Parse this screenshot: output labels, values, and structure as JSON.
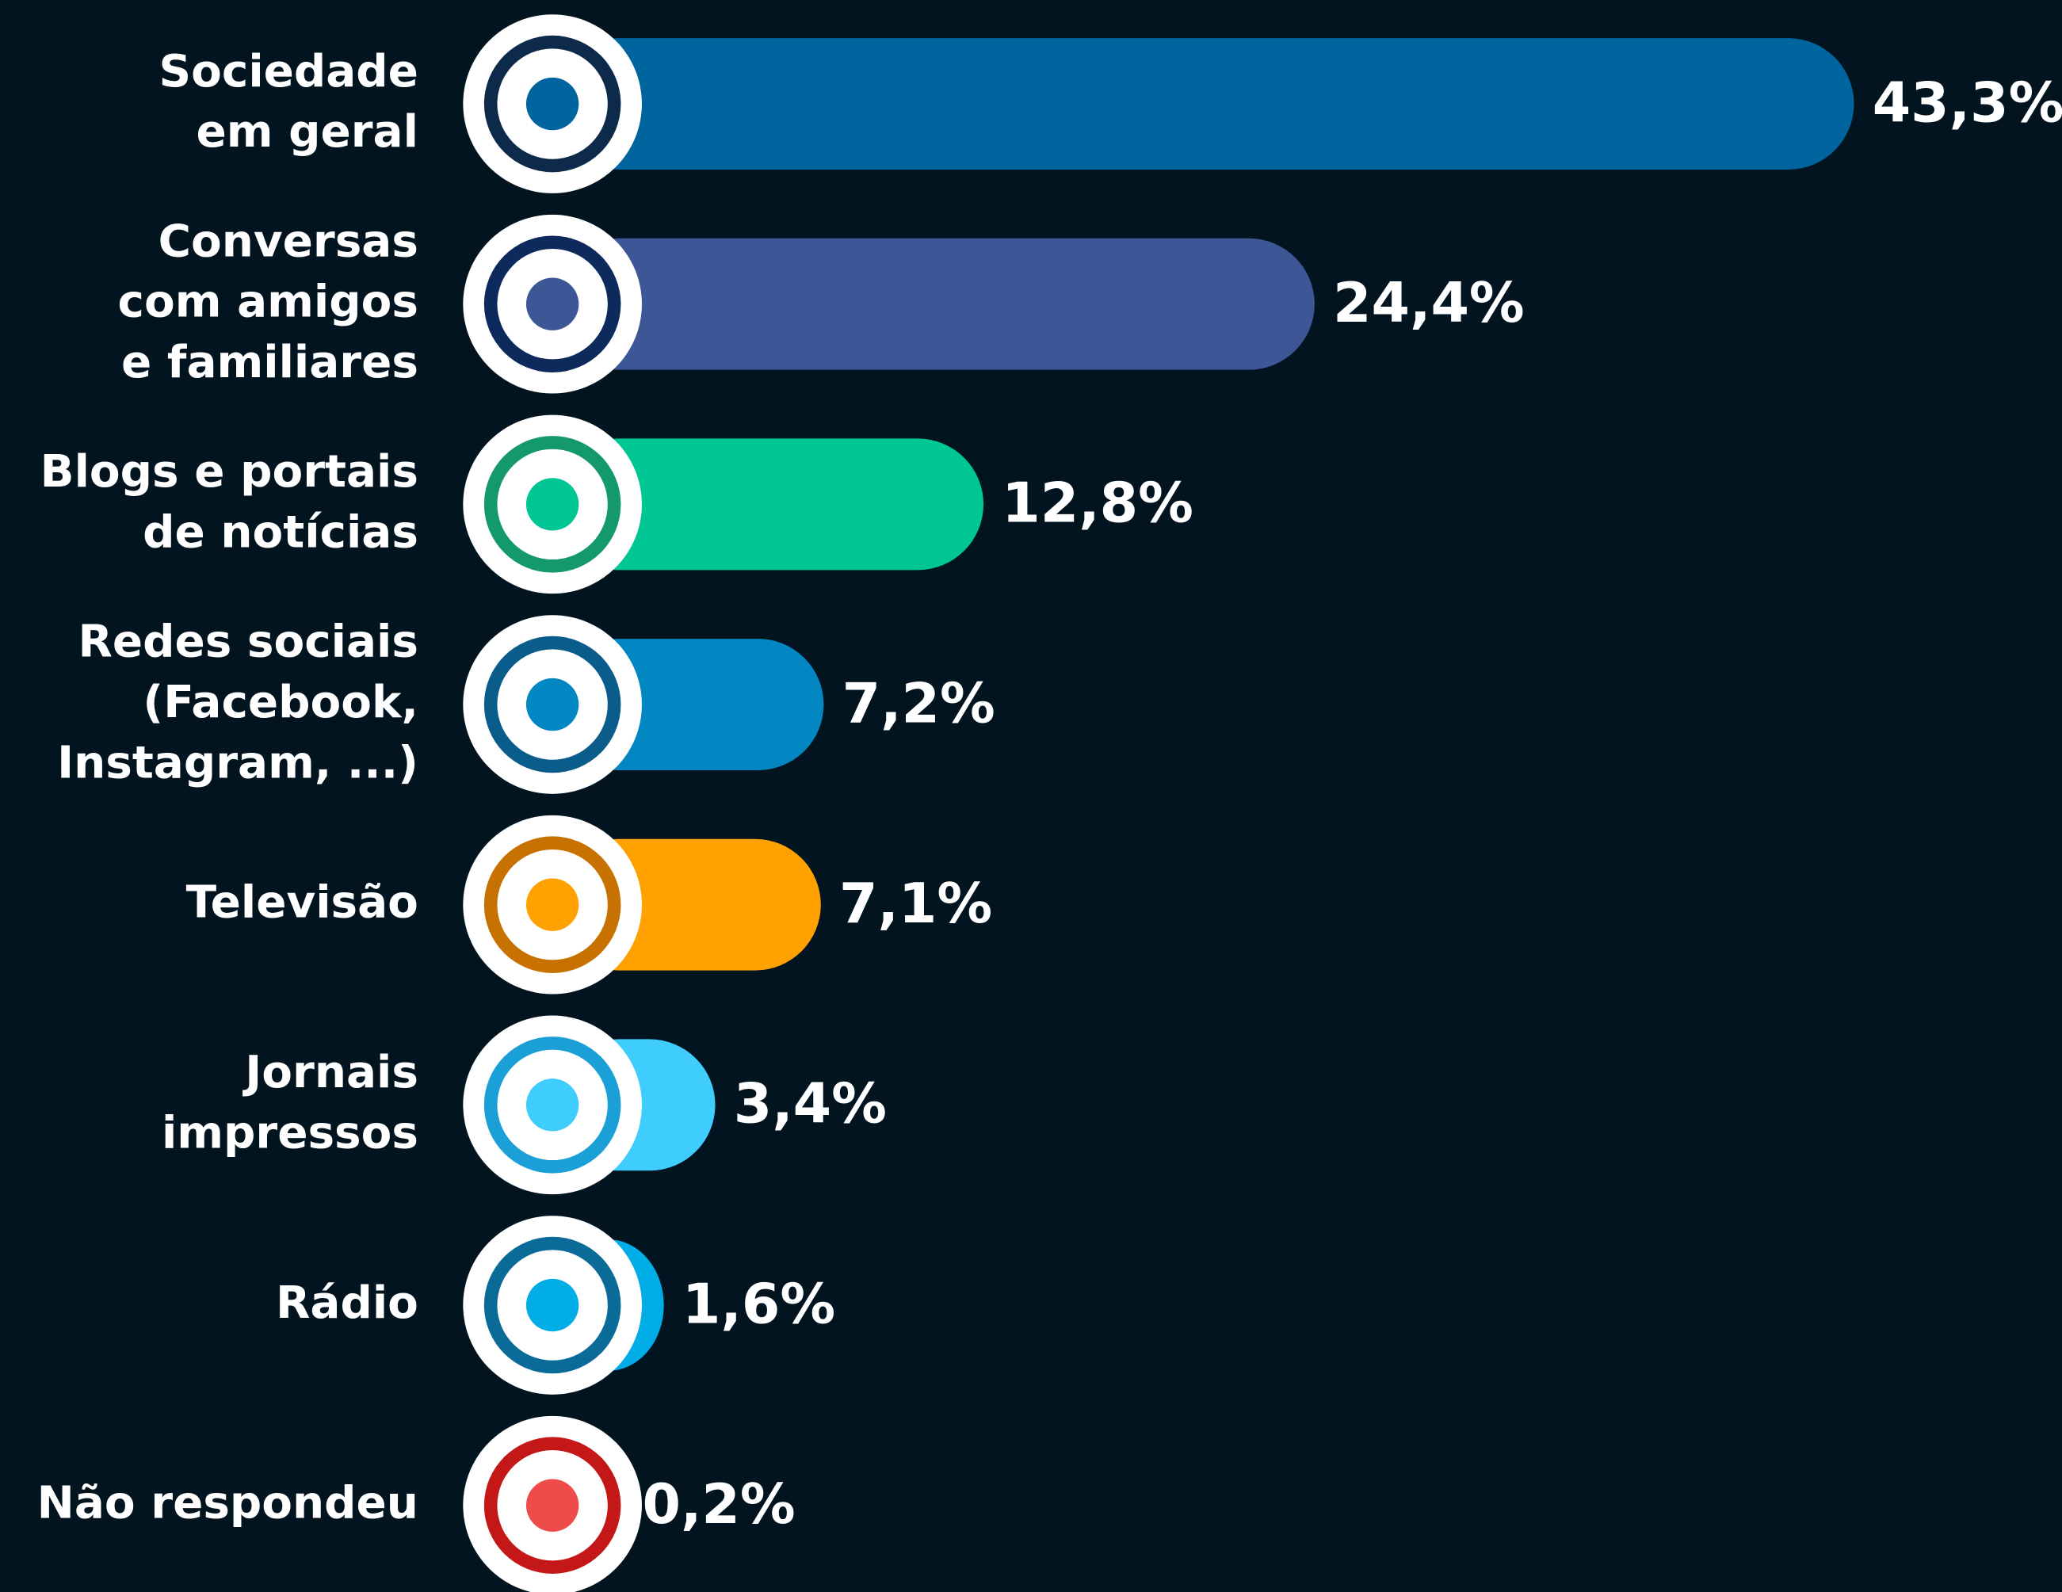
{
  "chart_data": {
    "type": "barh",
    "categories": [
      [
        "Sociedade",
        "em geral"
      ],
      [
        "Conversas",
        "com amigos",
        "e familiares"
      ],
      [
        "Blogs e portais",
        "de notícias"
      ],
      [
        "Redes sociais",
        "(Facebook,",
        "Instagram, ...)"
      ],
      [
        "Televisão"
      ],
      [
        "Jornais",
        "impressos"
      ],
      [
        "Rádio"
      ],
      [
        "Não respondeu"
      ]
    ],
    "values": [
      43.3,
      24.4,
      12.8,
      7.2,
      7.1,
      3.4,
      1.6,
      0.2
    ],
    "value_labels": [
      "43,3%",
      "24,4%",
      "12,8%",
      "7,2%",
      "7,1%",
      "3,4%",
      "1,6%",
      "0,2%"
    ],
    "colors": [
      "#00649e",
      "#3d5796",
      "#00c595",
      "#0287c3",
      "#ffa100",
      "#3fcdfd",
      "#00ade6",
      "#f04b4b"
    ],
    "ring_colors": [
      "#0d2a4a",
      "#0e2a5c",
      "#13996c",
      "#0a5c8a",
      "#c77200",
      "#1a9fd6",
      "#0a6b98",
      "#c41818"
    ]
  }
}
